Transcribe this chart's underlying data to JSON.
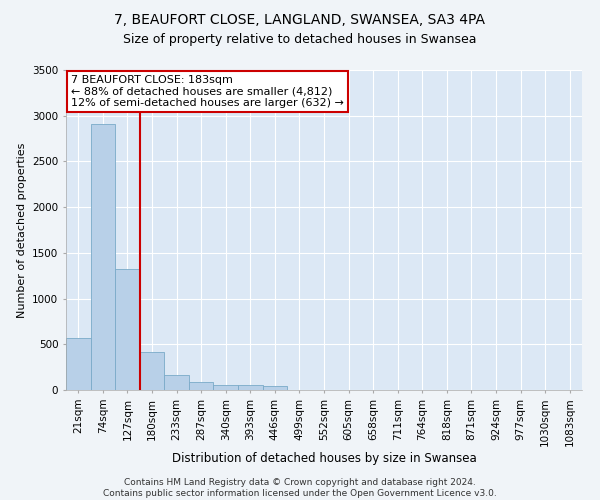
{
  "title1": "7, BEAUFORT CLOSE, LANGLAND, SWANSEA, SA3 4PA",
  "title2": "Size of property relative to detached houses in Swansea",
  "xlabel": "Distribution of detached houses by size in Swansea",
  "ylabel": "Number of detached properties",
  "categories": [
    "21sqm",
    "74sqm",
    "127sqm",
    "180sqm",
    "233sqm",
    "287sqm",
    "340sqm",
    "393sqm",
    "446sqm",
    "499sqm",
    "552sqm",
    "605sqm",
    "658sqm",
    "711sqm",
    "764sqm",
    "818sqm",
    "871sqm",
    "924sqm",
    "977sqm",
    "1030sqm",
    "1083sqm"
  ],
  "values": [
    570,
    2910,
    1320,
    415,
    160,
    85,
    60,
    50,
    40,
    0,
    0,
    0,
    0,
    0,
    0,
    0,
    0,
    0,
    0,
    0,
    0
  ],
  "bar_color": "#b8d0e8",
  "bar_edge_color": "#7aaac8",
  "background_color": "#dce8f5",
  "grid_color": "#ffffff",
  "annotation_text": "7 BEAUFORT CLOSE: 183sqm\n← 88% of detached houses are smaller (4,812)\n12% of semi-detached houses are larger (632) →",
  "annotation_box_color": "#ffffff",
  "annotation_box_edge_color": "#cc0000",
  "vline_color": "#cc0000",
  "ylim": [
    0,
    3500
  ],
  "yticks": [
    0,
    500,
    1000,
    1500,
    2000,
    2500,
    3000,
    3500
  ],
  "footer_text": "Contains HM Land Registry data © Crown copyright and database right 2024.\nContains public sector information licensed under the Open Government Licence v3.0.",
  "title1_fontsize": 10,
  "title2_fontsize": 9,
  "xlabel_fontsize": 8.5,
  "ylabel_fontsize": 8,
  "tick_fontsize": 7.5,
  "annotation_fontsize": 8,
  "footer_fontsize": 6.5
}
